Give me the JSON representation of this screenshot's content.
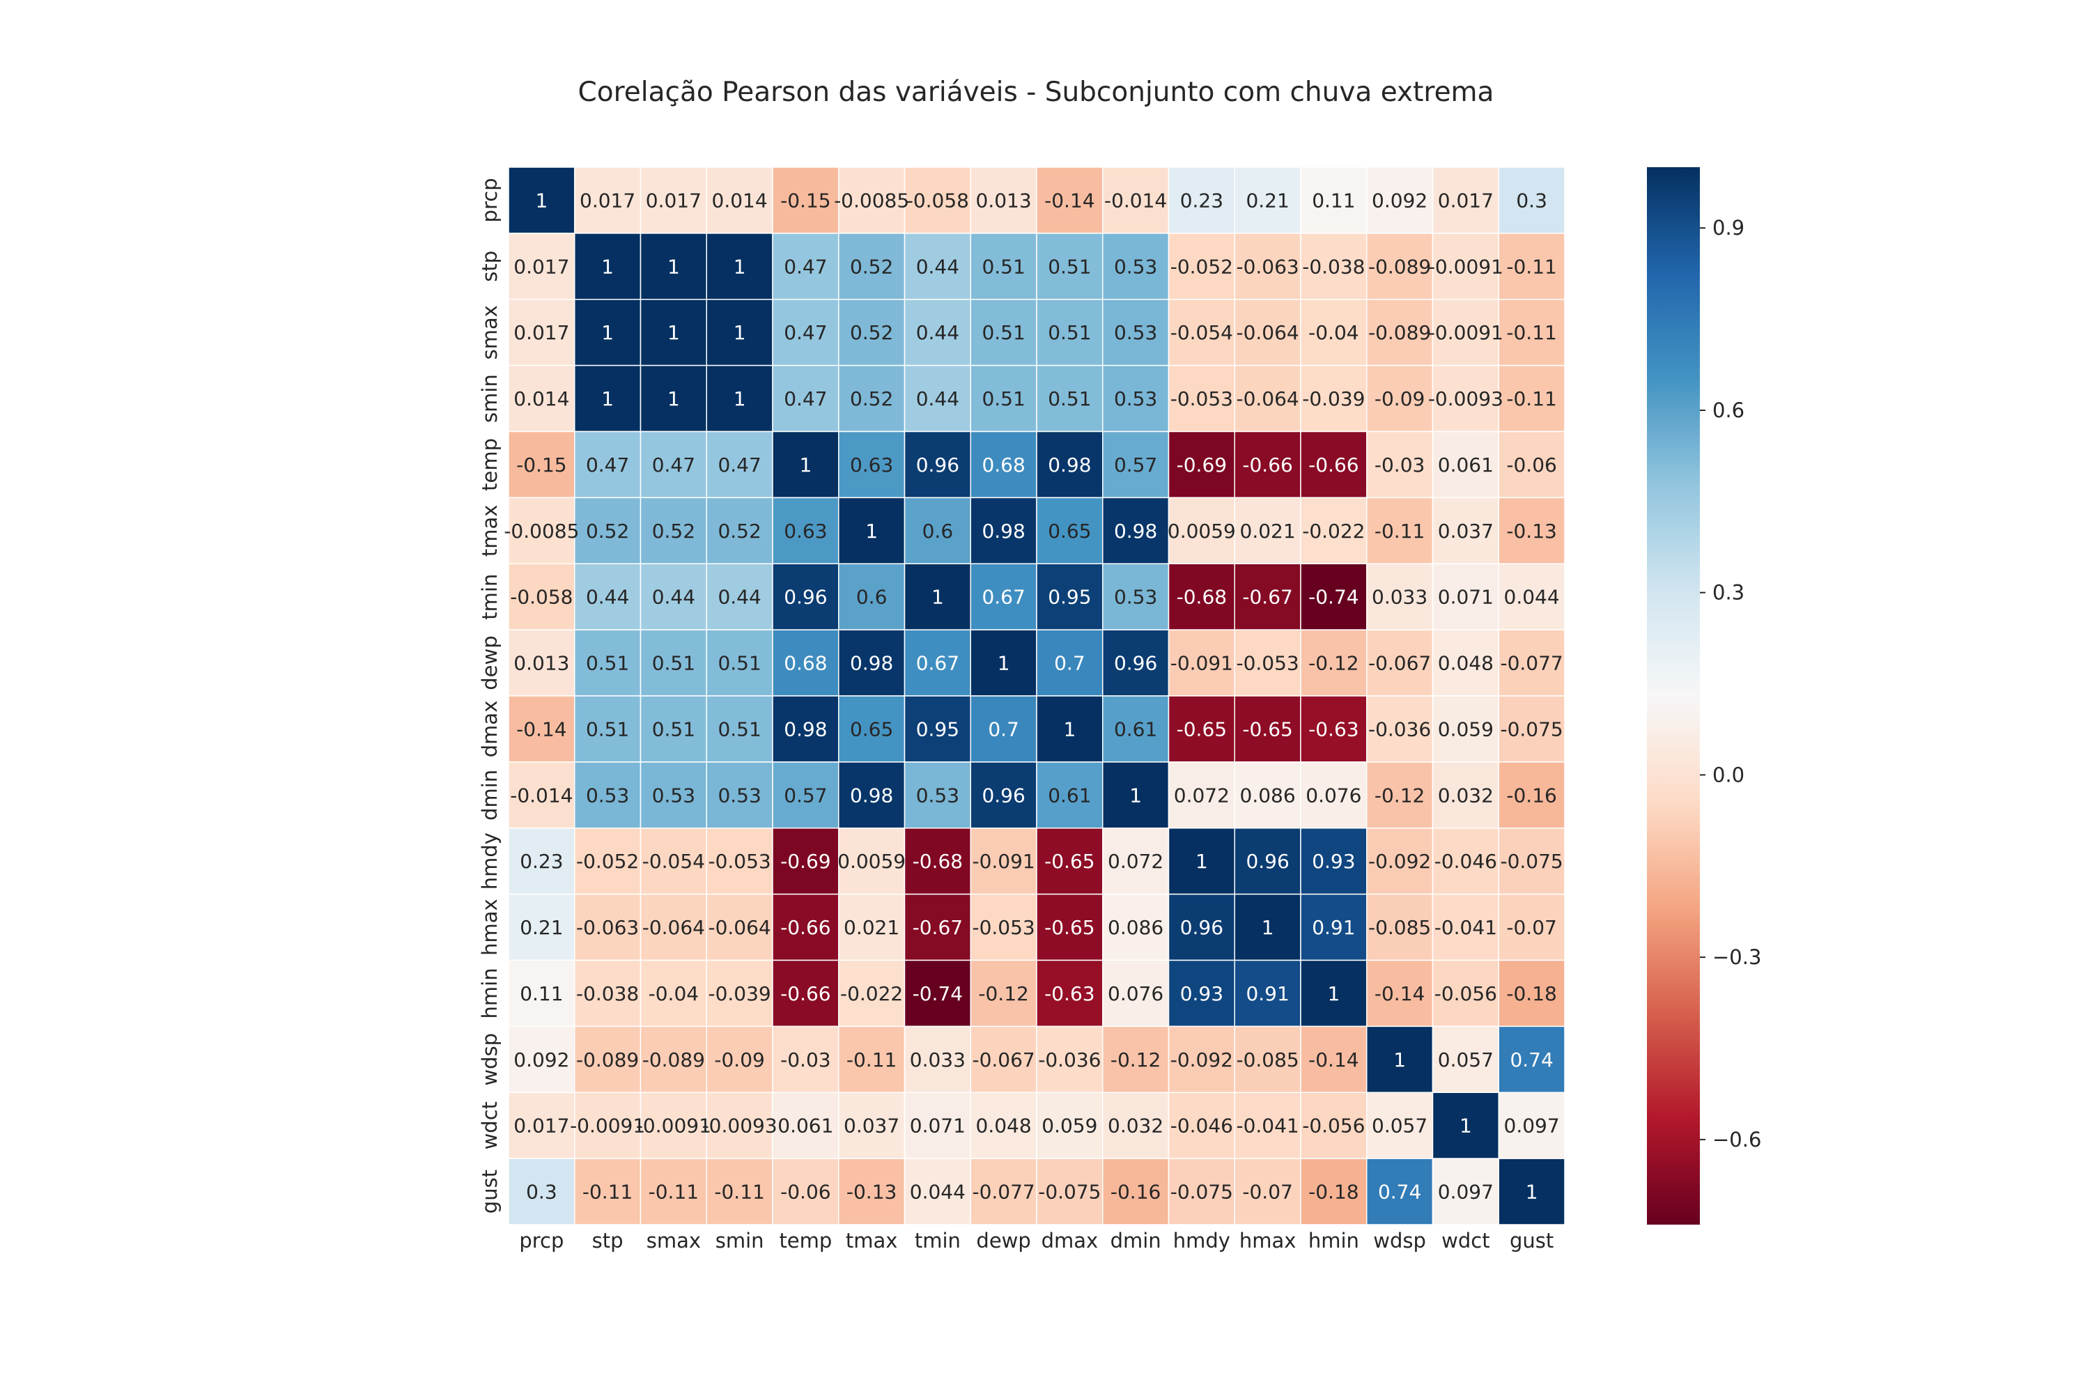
{
  "chart_data": {
    "type": "heatmap",
    "title": "Corelação Pearson das variáveis - Subconjunto com chuva extrema",
    "xlabel": "",
    "ylabel": "",
    "x_labels": [
      "prcp",
      "stp",
      "smax",
      "smin",
      "temp",
      "tmax",
      "tmin",
      "dewp",
      "dmax",
      "dmin",
      "hmdy",
      "hmax",
      "hmin",
      "wdsp",
      "wdct",
      "gust"
    ],
    "y_labels": [
      "prcp",
      "stp",
      "smax",
      "smin",
      "temp",
      "tmax",
      "tmin",
      "dewp",
      "dmax",
      "dmin",
      "hmdy",
      "hmax",
      "hmin",
      "wdsp",
      "wdct",
      "gust"
    ],
    "values": [
      [
        "1",
        "0.017",
        "0.017",
        "0.014",
        "-0.15",
        "-0.0085",
        "-0.058",
        "0.013",
        "-0.14",
        "-0.014",
        "0.23",
        "0.21",
        "0.11",
        "0.092",
        "0.017",
        "0.3"
      ],
      [
        "0.017",
        "1",
        "1",
        "1",
        "0.47",
        "0.52",
        "0.44",
        "0.51",
        "0.51",
        "0.53",
        "-0.052",
        "-0.063",
        "-0.038",
        "-0.089",
        "-0.0091",
        "-0.11"
      ],
      [
        "0.017",
        "1",
        "1",
        "1",
        "0.47",
        "0.52",
        "0.44",
        "0.51",
        "0.51",
        "0.53",
        "-0.054",
        "-0.064",
        "-0.04",
        "-0.089",
        "-0.0091",
        "-0.11"
      ],
      [
        "0.014",
        "1",
        "1",
        "1",
        "0.47",
        "0.52",
        "0.44",
        "0.51",
        "0.51",
        "0.53",
        "-0.053",
        "-0.064",
        "-0.039",
        "-0.09",
        "-0.0093",
        "-0.11"
      ],
      [
        "-0.15",
        "0.47",
        "0.47",
        "0.47",
        "1",
        "0.63",
        "0.96",
        "0.68",
        "0.98",
        "0.57",
        "-0.69",
        "-0.66",
        "-0.66",
        "-0.03",
        "0.061",
        "-0.06"
      ],
      [
        "-0.0085",
        "0.52",
        "0.52",
        "0.52",
        "0.63",
        "1",
        "0.6",
        "0.98",
        "0.65",
        "0.98",
        "0.0059",
        "0.021",
        "-0.022",
        "-0.11",
        "0.037",
        "-0.13"
      ],
      [
        "-0.058",
        "0.44",
        "0.44",
        "0.44",
        "0.96",
        "0.6",
        "1",
        "0.67",
        "0.95",
        "0.53",
        "-0.68",
        "-0.67",
        "-0.74",
        "0.033",
        "0.071",
        "0.044"
      ],
      [
        "0.013",
        "0.51",
        "0.51",
        "0.51",
        "0.68",
        "0.98",
        "0.67",
        "1",
        "0.7",
        "0.96",
        "-0.091",
        "-0.053",
        "-0.12",
        "-0.067",
        "0.048",
        "-0.077"
      ],
      [
        "-0.14",
        "0.51",
        "0.51",
        "0.51",
        "0.98",
        "0.65",
        "0.95",
        "0.7",
        "1",
        "0.61",
        "-0.65",
        "-0.65",
        "-0.63",
        "-0.036",
        "0.059",
        "-0.075"
      ],
      [
        "-0.014",
        "0.53",
        "0.53",
        "0.53",
        "0.57",
        "0.98",
        "0.53",
        "0.96",
        "0.61",
        "1",
        "0.072",
        "0.086",
        "0.076",
        "-0.12",
        "0.032",
        "-0.16"
      ],
      [
        "0.23",
        "-0.052",
        "-0.054",
        "-0.053",
        "-0.69",
        "0.0059",
        "-0.68",
        "-0.091",
        "-0.65",
        "0.072",
        "1",
        "0.96",
        "0.93",
        "-0.092",
        "-0.046",
        "-0.075"
      ],
      [
        "0.21",
        "-0.063",
        "-0.064",
        "-0.064",
        "-0.66",
        "0.021",
        "-0.67",
        "-0.053",
        "-0.65",
        "0.086",
        "0.96",
        "1",
        "0.91",
        "-0.085",
        "-0.041",
        "-0.07"
      ],
      [
        "0.11",
        "-0.038",
        "-0.04",
        "-0.039",
        "-0.66",
        "-0.022",
        "-0.74",
        "-0.12",
        "-0.63",
        "0.076",
        "0.93",
        "0.91",
        "1",
        "-0.14",
        "-0.056",
        "-0.18"
      ],
      [
        "0.092",
        "-0.089",
        "-0.089",
        "-0.09",
        "-0.03",
        "-0.11",
        "0.033",
        "-0.067",
        "-0.036",
        "-0.12",
        "-0.092",
        "-0.085",
        "-0.14",
        "1",
        "0.057",
        "0.74"
      ],
      [
        "0.017",
        "-0.0091",
        "-0.0091",
        "-0.0093",
        "0.061",
        "0.037",
        "0.071",
        "0.048",
        "0.059",
        "0.032",
        "-0.046",
        "-0.041",
        "-0.056",
        "0.057",
        "1",
        "0.097"
      ],
      [
        "0.3",
        "-0.11",
        "-0.11",
        "-0.11",
        "-0.06",
        "-0.13",
        "0.044",
        "-0.077",
        "-0.075",
        "-0.16",
        "-0.075",
        "-0.07",
        "-0.18",
        "0.74",
        "0.097",
        "1"
      ]
    ],
    "colorbar": {
      "range": [
        -0.74,
        1.0
      ],
      "colormap": "RdBu",
      "ticks": [
        -0.6,
        -0.3,
        0.0,
        0.3,
        0.6,
        0.9
      ],
      "tick_labels": [
        "−0.6",
        "−0.3",
        "0.0",
        "0.3",
        "0.6",
        "0.9"
      ]
    },
    "grid": false,
    "legend": "colorbar-right"
  }
}
